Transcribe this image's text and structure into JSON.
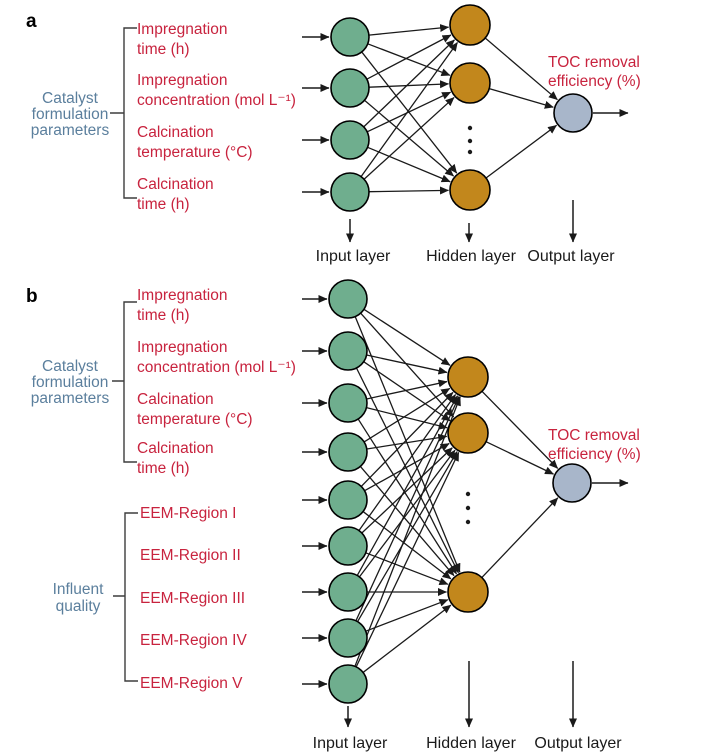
{
  "colors": {
    "input_node": "#6fae8e",
    "hidden_node": "#c2871c",
    "output_node": "#a8b6ca",
    "label_red": "#c8233e",
    "label_blue": "#5b7f9d",
    "text_black": "#1a1a1a",
    "line": "#1a1a1a"
  },
  "panels": {
    "a": {
      "tag": "a",
      "group_catalyst": {
        "line1": "Catalyst",
        "line2": "formulation",
        "line3": "parameters"
      },
      "inputs": [
        {
          "line1": "Impregnation",
          "line2": "time (h)"
        },
        {
          "line1": "Impregnation",
          "line2": "concentration (mol L⁻¹)"
        },
        {
          "line1": "Calcination",
          "line2": "temperature (°C)"
        },
        {
          "line1": "Calcination",
          "line2": "time (h)"
        }
      ],
      "output_label": {
        "line1": "TOC removal",
        "line2": "efficiency (%)"
      },
      "layer_labels": {
        "input": "Input layer",
        "hidden": "Hidden layer",
        "output": "Output layer"
      }
    },
    "b": {
      "tag": "b",
      "group_catalyst": {
        "line1": "Catalyst",
        "line2": "formulation",
        "line3": "parameters"
      },
      "group_influent": {
        "line1": "Influent",
        "line2": "quality"
      },
      "inputs_catalyst": [
        {
          "line1": "Impregnation",
          "line2": "time (h)"
        },
        {
          "line1": "Impregnation",
          "line2": "concentration (mol L⁻¹)"
        },
        {
          "line1": "Calcination",
          "line2": "temperature (°C)"
        },
        {
          "line1": "Calcination",
          "line2": "time (h)"
        }
      ],
      "inputs_influent": [
        "EEM-Region I",
        "EEM-Region II",
        "EEM-Region III",
        "EEM-Region IV",
        "EEM-Region V"
      ],
      "output_label": {
        "line1": "TOC removal",
        "line2": "efficiency (%)"
      },
      "layer_labels": {
        "input": "Input layer",
        "hidden": "Hidden layer",
        "output": "Output layer"
      }
    }
  }
}
